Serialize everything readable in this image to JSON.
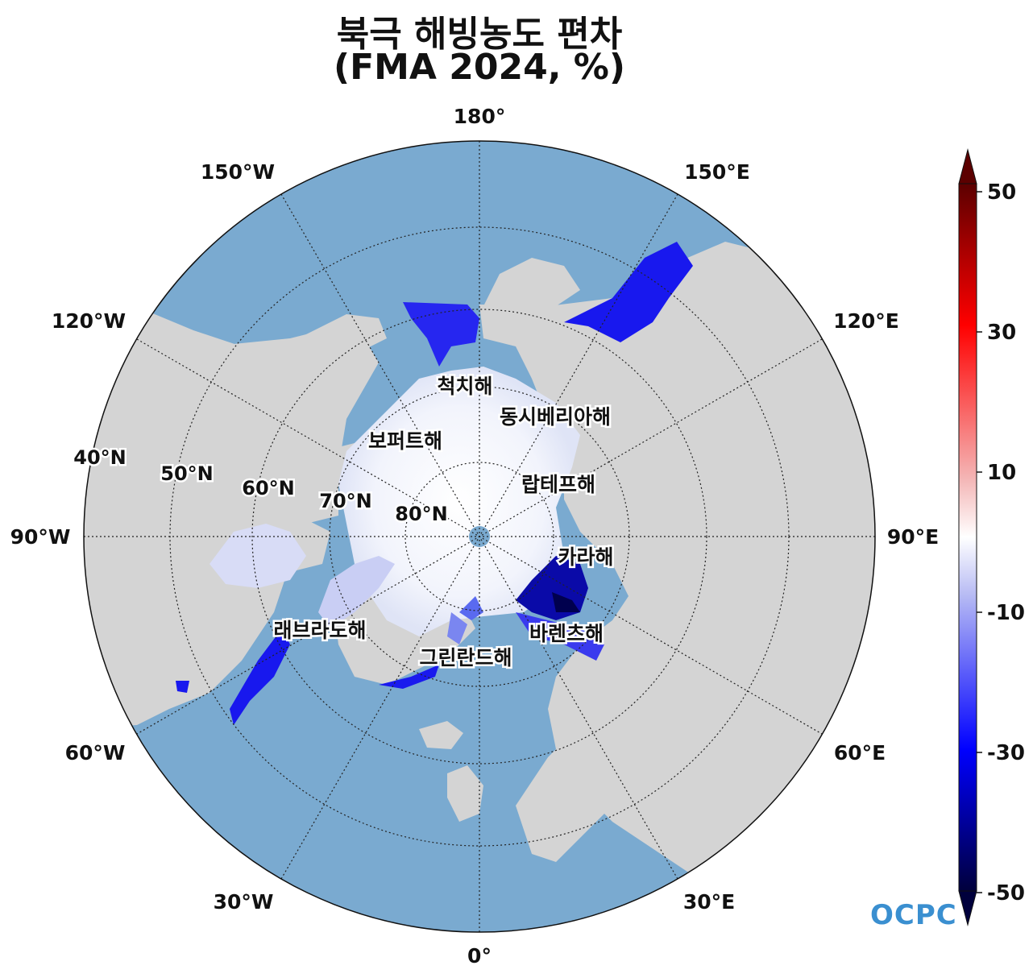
{
  "title": {
    "line1": "북극 해빙농도 편차",
    "line2": "(FMA 2024, %)"
  },
  "map": {
    "projection": "north-polar-stereographic",
    "longitude_labels": {
      "lon_180": "180°",
      "lon_150E": "150°E",
      "lon_120E": "120°E",
      "lon_90E": "90°E",
      "lon_60E": "60°E",
      "lon_30E": "30°E",
      "lon_0": "0°",
      "lon_30W": "30°W",
      "lon_60W": "60°W",
      "lon_90W": "90°W",
      "lon_120W": "120°W",
      "lon_150W": "150°W"
    },
    "latitude_labels": {
      "lat_40": "40°N",
      "lat_50": "50°N",
      "lat_60": "60°N",
      "lat_70": "70°N",
      "lat_80": "80°N"
    },
    "seas": {
      "chukchi": "척치해",
      "east_siberian": "동시베리아해",
      "beaufort": "보퍼트해",
      "laptev": "랍테프해",
      "kara": "카라해",
      "barents": "바렌츠해",
      "labrador": "래브라도해",
      "greenland": "그린란드해"
    },
    "colors": {
      "ocean": "#7aaad0",
      "land": "#d4d4d4",
      "ice": "#f4f6fc",
      "neg_strong": "#0000f0",
      "neg_extreme": "#00005a"
    }
  },
  "colorbar": {
    "min": -50,
    "max": 50,
    "tick_labels": {
      "t50": "50",
      "t30": "30",
      "t10": "10",
      "tm10": "-10",
      "tm30": "-30",
      "tm50": "-50"
    },
    "colors": [
      "#00004a",
      "#0000ff",
      "#ffffff",
      "#ff0000",
      "#6a0000"
    ]
  },
  "logo": {
    "text": "OCPC"
  }
}
